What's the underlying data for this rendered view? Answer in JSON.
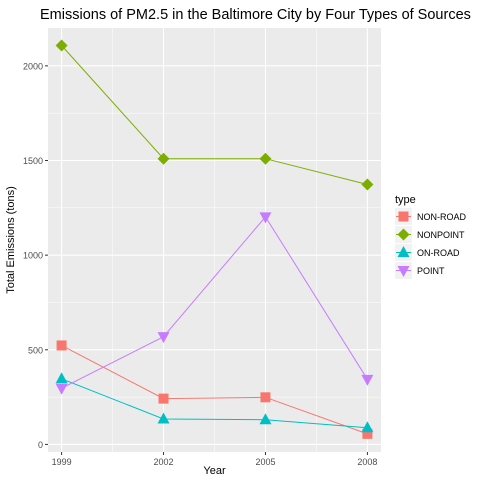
{
  "chart_data": {
    "type": "line",
    "title": "Emissions of PM2.5 in the Baltimore City by Four Types of Sources",
    "xlabel": "Year",
    "ylabel": "Total Emissions (tons)",
    "x": [
      1999,
      2002,
      2005,
      2008
    ],
    "x_ticks": [
      "1999",
      "2002",
      "2005",
      "2008"
    ],
    "y_ticks": [
      0,
      500,
      1000,
      1500,
      2000
    ],
    "xlim": [
      1998.6,
      2008.4
    ],
    "ylim": [
      -40,
      2200
    ],
    "grid": true,
    "legend_title": "type",
    "legend_position": "right",
    "series": [
      {
        "name": "NON-ROAD",
        "color": "#F8766D",
        "marker": "square",
        "values": [
          522.9,
          242.0,
          248.9,
          55.8
        ]
      },
      {
        "name": "NONPOINT",
        "color": "#7CAE00",
        "marker": "diamond",
        "values": [
          2107.6,
          1509.5,
          1509.5,
          1373.2
        ]
      },
      {
        "name": "ON-ROAD",
        "color": "#00BFC4",
        "marker": "triangle-up",
        "values": [
          346.8,
          134.3,
          130.4,
          88.3
        ]
      },
      {
        "name": "POINT",
        "color": "#C77CFF",
        "marker": "triangle-down",
        "values": [
          296.8,
          569.3,
          1202.5,
          344.0
        ]
      }
    ]
  }
}
